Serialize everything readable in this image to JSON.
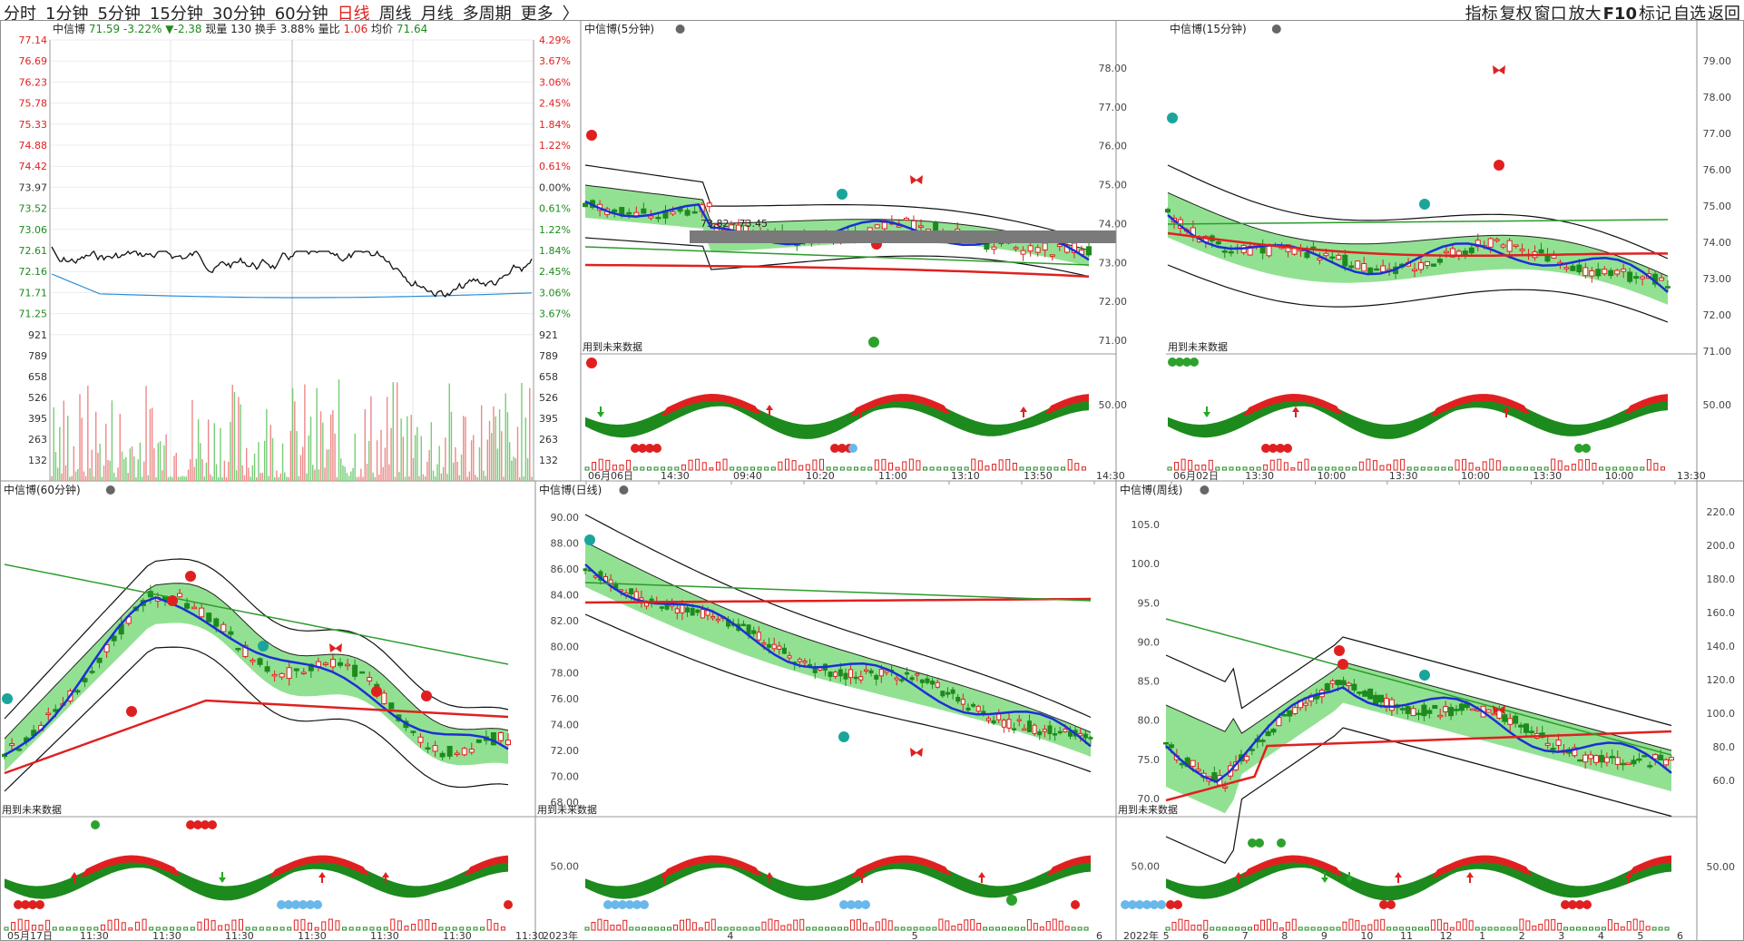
{
  "topbar": {
    "periods": [
      "分时",
      "1分钟",
      "5分钟",
      "15分钟",
      "30分钟",
      "60分钟",
      "日线",
      "周线",
      "月线",
      "多周期",
      "更多",
      "〉"
    ],
    "active_period": "日线",
    "tools": [
      "指标",
      "复权",
      "窗口",
      "放大",
      "F10",
      "标记",
      "自选",
      "返回"
    ]
  },
  "panels": {
    "intraday": {
      "name": "中信博",
      "price": "71.59",
      "change": "-3.22%",
      "change_abs": "▼-2.38",
      "volume": "现量 130",
      "turnover": "换手 3.88%",
      "ratio_label": "量比",
      "ratio_value": "1.06",
      "avg_label": "均价",
      "avg_value": "71.64",
      "price_ticks": [
        "77.14",
        "76.69",
        "76.23",
        "75.78",
        "75.33",
        "74.88",
        "74.42",
        "73.97",
        "73.52",
        "73.06",
        "72.61",
        "72.16",
        "71.71",
        "71.25",
        "921"
      ],
      "pct_ticks": [
        "4.29%",
        "3.67%",
        "3.06%",
        "2.45%",
        "1.84%",
        "1.22%",
        "0.61%",
        "0.00%",
        "0.61%",
        "1.22%",
        "1.84%",
        "2.45%",
        "3.06%",
        "3.67%",
        "921"
      ],
      "vol_ticks": [
        "789",
        "658",
        "526",
        "395",
        "263",
        "132"
      ]
    },
    "m5": {
      "title": "中信博(5分钟)",
      "y_ticks": [
        "78.00",
        "77.00",
        "76.00",
        "75.00",
        "74.00",
        "73.00",
        "72.00",
        "71.00"
      ],
      "annotation": "73.82 - 73.45",
      "future_label": "用到未来数据",
      "ind_tick": "50.00",
      "x_labels": [
        "06月06日",
        "14:30",
        "09:40",
        "10:20",
        "11:00",
        "13:10",
        "13:50",
        "14:30"
      ]
    },
    "m15": {
      "title": "中信博(15分钟)",
      "y_ticks": [
        "79.00",
        "78.00",
        "77.00",
        "76.00",
        "75.00",
        "74.00",
        "73.00",
        "72.00",
        "71.00"
      ],
      "future_label": "用到未来数据",
      "ind_tick": "50.00",
      "x_labels": [
        "06月02日",
        "13:30",
        "10:00",
        "13:30",
        "10:00",
        "13:30",
        "10:00",
        "13:30"
      ]
    },
    "m60": {
      "title": "中信博(60分钟)",
      "future_label": "用到未来数据",
      "x_labels": [
        "05月17日",
        "11:30",
        "11:30",
        "11:30",
        "11:30",
        "11:30",
        "11:30",
        "11:30"
      ]
    },
    "daily": {
      "title": "中信博(日线)",
      "y_ticks": [
        "90.00",
        "88.00",
        "86.00",
        "84.00",
        "82.00",
        "80.00",
        "78.00",
        "76.00",
        "74.00",
        "72.00",
        "70.00",
        "68.00"
      ],
      "future_label": "用到未来数据",
      "ind_tick": "50.00",
      "x_labels": [
        "2023年",
        "4",
        "5",
        "6"
      ]
    },
    "weekly": {
      "title": "中信博(周线)",
      "y_ticks": [
        "105.0",
        "100.0",
        "95.0",
        "90.0",
        "85.0",
        "80.0",
        "75.0",
        "70.0"
      ],
      "y_ticks_right": [
        "220.0",
        "200.0",
        "180.0",
        "160.0",
        "140.0",
        "120.0",
        "100.0",
        "80.0",
        "60.0"
      ],
      "future_label": "用到未来数据",
      "ind_tick": "50.00",
      "ind_tick_right": "50.00",
      "x_labels": [
        "2022年",
        "5",
        "6",
        "7",
        "8",
        "9",
        "10",
        "11",
        "12",
        "1",
        "2",
        "3",
        "4",
        "5",
        "6"
      ]
    }
  },
  "colors": {
    "up": "#e02020",
    "down": "#1d8a1d",
    "blue": "#1c2fd6",
    "band": "#7fdc7f",
    "cyan": "#9fe3e3"
  }
}
